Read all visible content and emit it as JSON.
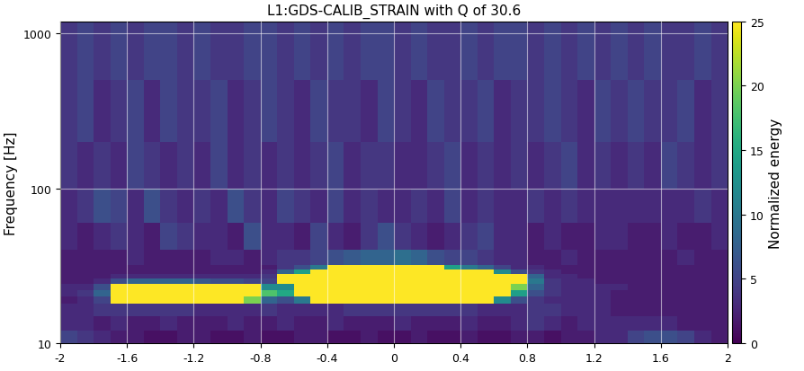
{
  "chart_data": {
    "type": "heatmap",
    "title": "L1:GDS-CALIB_STRAIN with Q of 30.6",
    "y_label": "Frequency [Hz]",
    "log": "y",
    "grid": true,
    "color": "viridis",
    "xlim": [
      -2,
      2
    ],
    "xticks": [
      -2,
      -1.6,
      -1.2,
      -0.8,
      -0.4,
      0,
      0.4,
      0.8,
      1.2,
      1.6,
      2
    ],
    "ylim": [
      10,
      1200
    ],
    "yticks": [
      10,
      100,
      1000
    ],
    "x_edges": [
      -2,
      -1.9,
      -1.8,
      -1.7,
      -1.6,
      -1.5,
      -1.4,
      -1.3,
      -1.2,
      -1.1,
      -1,
      -0.9,
      -0.8,
      -0.7,
      -0.6,
      -0.5,
      -0.4,
      -0.3,
      -0.2,
      -0.1,
      0,
      0.1,
      0.2,
      0.3,
      0.4,
      0.5,
      0.6,
      0.7,
      0.8,
      0.9,
      1,
      1.1,
      1.2,
      1.3,
      1.4,
      1.5,
      1.6,
      1.7,
      1.8,
      1.9,
      2
    ],
    "y_edges": [
      10,
      12,
      15,
      18,
      20,
      22,
      24,
      26,
      28,
      30,
      32,
      40,
      60,
      100,
      200,
      500,
      1200
    ],
    "cells": [
      [
        5,
        4,
        3,
        2,
        2,
        1,
        1,
        2,
        2,
        1,
        1,
        2,
        1,
        1,
        2,
        2,
        1,
        1,
        2,
        1,
        1,
        2,
        1,
        1,
        2,
        1,
        1,
        2,
        2,
        1,
        2,
        2,
        3,
        3,
        5,
        6,
        6,
        5,
        3,
        2
      ],
      [
        3,
        3,
        2,
        3,
        2,
        2,
        3,
        2,
        2,
        2,
        3,
        2,
        2,
        3,
        2,
        2,
        3,
        2,
        2,
        2,
        3,
        2,
        2,
        2,
        3,
        2,
        2,
        3,
        4,
        3,
        2,
        3,
        3,
        3,
        3,
        3,
        3,
        2,
        2,
        2
      ],
      [
        3,
        3,
        4,
        4,
        4,
        4,
        4,
        4,
        3,
        3,
        3,
        3,
        4,
        3,
        3,
        3,
        3,
        4,
        4,
        4,
        4,
        4,
        4,
        4,
        4,
        3,
        3,
        3,
        4,
        4,
        3,
        3,
        3,
        2,
        2,
        2,
        2,
        2,
        2,
        2
      ],
      [
        2,
        3,
        5,
        30,
        35,
        35,
        35,
        35,
        35,
        35,
        30,
        20,
        8,
        6,
        10,
        30,
        40,
        40,
        40,
        40,
        40,
        40,
        40,
        35,
        30,
        25,
        12,
        6,
        4,
        3,
        3,
        3,
        3,
        2,
        2,
        2,
        2,
        2,
        2,
        2
      ],
      [
        3,
        4,
        8,
        35,
        45,
        45,
        45,
        45,
        45,
        45,
        40,
        35,
        18,
        15,
        28,
        45,
        50,
        50,
        50,
        50,
        50,
        50,
        50,
        45,
        45,
        40,
        30,
        14,
        6,
        4,
        3,
        3,
        3,
        2,
        2,
        2,
        2,
        2,
        2,
        2
      ],
      [
        3,
        3,
        6,
        28,
        35,
        35,
        35,
        35,
        35,
        35,
        32,
        28,
        12,
        12,
        30,
        45,
        50,
        50,
        50,
        50,
        50,
        50,
        50,
        48,
        45,
        40,
        32,
        20,
        8,
        4,
        3,
        3,
        3,
        3,
        2,
        2,
        2,
        2,
        2,
        2
      ],
      [
        2,
        2,
        3,
        6,
        8,
        8,
        8,
        8,
        7,
        6,
        6,
        5,
        5,
        28,
        35,
        45,
        50,
        50,
        50,
        50,
        50,
        50,
        50,
        48,
        45,
        40,
        35,
        28,
        10,
        4,
        3,
        3,
        2,
        2,
        2,
        2,
        2,
        2,
        2,
        2
      ],
      [
        2,
        2,
        2,
        3,
        3,
        3,
        3,
        3,
        3,
        3,
        3,
        3,
        4,
        26,
        35,
        40,
        45,
        45,
        45,
        45,
        45,
        45,
        45,
        45,
        40,
        38,
        34,
        28,
        8,
        3,
        3,
        2,
        2,
        2,
        2,
        2,
        2,
        2,
        2,
        2
      ],
      [
        2,
        2,
        2,
        2,
        2,
        2,
        2,
        2,
        2,
        2,
        2,
        2,
        3,
        8,
        14,
        32,
        38,
        40,
        40,
        40,
        40,
        40,
        38,
        35,
        30,
        26,
        12,
        6,
        4,
        3,
        2,
        2,
        2,
        2,
        2,
        2,
        2,
        2,
        2,
        2
      ],
      [
        2,
        2,
        2,
        2,
        2,
        2,
        2,
        2,
        2,
        2,
        2,
        2,
        2,
        4,
        6,
        10,
        26,
        28,
        28,
        30,
        30,
        28,
        26,
        14,
        10,
        8,
        5,
        3,
        3,
        2,
        2,
        2,
        2,
        2,
        2,
        2,
        2,
        2,
        2,
        2
      ],
      [
        2,
        2,
        2,
        2,
        3,
        2,
        2,
        2,
        2,
        3,
        3,
        2,
        3,
        4,
        4,
        5,
        6,
        7,
        8,
        8,
        9,
        8,
        6,
        5,
        5,
        4,
        3,
        3,
        2,
        2,
        3,
        2,
        2,
        2,
        2,
        2,
        2,
        3,
        2,
        2
      ],
      [
        3,
        2,
        3,
        4,
        3,
        2,
        5,
        4,
        3,
        3,
        2,
        6,
        3,
        3,
        2,
        5,
        3,
        2,
        4,
        6,
        4,
        3,
        2,
        3,
        4,
        5,
        3,
        3,
        2,
        3,
        2,
        2,
        3,
        3,
        2,
        2,
        3,
        2,
        2,
        3
      ],
      [
        3,
        4,
        6,
        5,
        3,
        6,
        4,
        3,
        4,
        3,
        6,
        4,
        3,
        5,
        4,
        3,
        5,
        3,
        4,
        3,
        3,
        4,
        3,
        5,
        3,
        4,
        3,
        3,
        4,
        3,
        4,
        3,
        3,
        3,
        3,
        3,
        3,
        3,
        4,
        3
      ],
      [
        4,
        3,
        4,
        3,
        5,
        4,
        3,
        4,
        3,
        5,
        3,
        4,
        3,
        4,
        3,
        4,
        5,
        3,
        4,
        4,
        3,
        3,
        4,
        5,
        3,
        4,
        3,
        4,
        3,
        4,
        5,
        3,
        4,
        3,
        4,
        3,
        5,
        4,
        3,
        4
      ],
      [
        4,
        5,
        3,
        4,
        5,
        3,
        5,
        4,
        4,
        5,
        3,
        4,
        5,
        4,
        3,
        5,
        4,
        4,
        3,
        5,
        4,
        3,
        5,
        4,
        4,
        5,
        3,
        4,
        4,
        5,
        4,
        3,
        5,
        4,
        5,
        4,
        4,
        5,
        3,
        4
      ],
      [
        4,
        5,
        4,
        5,
        4,
        5,
        5,
        4,
        5,
        4,
        4,
        5,
        5,
        4,
        5,
        4,
        5,
        4,
        5,
        5,
        4,
        5,
        4,
        4,
        5,
        4,
        5,
        5,
        4,
        5,
        4,
        5,
        4,
        5,
        4,
        5,
        4,
        4,
        5,
        4
      ]
    ],
    "colorbar": {
      "label": "Normalized energy",
      "lim": [
        0,
        25
      ],
      "ticks": [
        0,
        5,
        10,
        15,
        20,
        25
      ]
    }
  }
}
